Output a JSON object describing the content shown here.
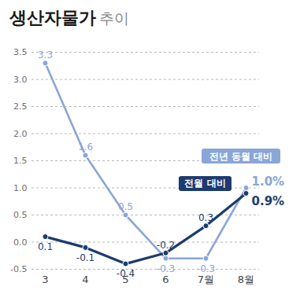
{
  "chart_data": {
    "type": "line",
    "title": "생산자물가 추이",
    "categories": [
      "3",
      "4",
      "5",
      "6",
      "7월",
      "8월"
    ],
    "series": [
      {
        "name": "전년 동월 대비",
        "color": "#8aa6d6",
        "marker": "circle",
        "values": [
          3.3,
          1.6,
          0.5,
          -0.3,
          -0.3,
          1.0
        ],
        "value_labels": [
          "3.3",
          "1.6",
          "0.5",
          "-0.3",
          "-0.3",
          "1.0%"
        ]
      },
      {
        "name": "전월 대비",
        "color": "#1d3b70",
        "marker": "circle",
        "values": [
          0.1,
          -0.1,
          -0.4,
          -0.2,
          0.3,
          0.9
        ],
        "value_labels": [
          "0.1",
          "-0.1",
          "-0.4",
          "-0.2",
          "0.3",
          "0.9%"
        ]
      }
    ],
    "ylim": [
      -0.5,
      3.5
    ],
    "yticks": [
      -0.5,
      {
        "value": 0,
        "label": "0.0"
      },
      0.5,
      {
        "value": 1,
        "label": "1.0"
      },
      1.5,
      {
        "value": 2,
        "label": "2.0"
      },
      2.5,
      {
        "value": 3,
        "label": "3.0"
      },
      3.5
    ],
    "grid": true,
    "data_labels": true
  }
}
